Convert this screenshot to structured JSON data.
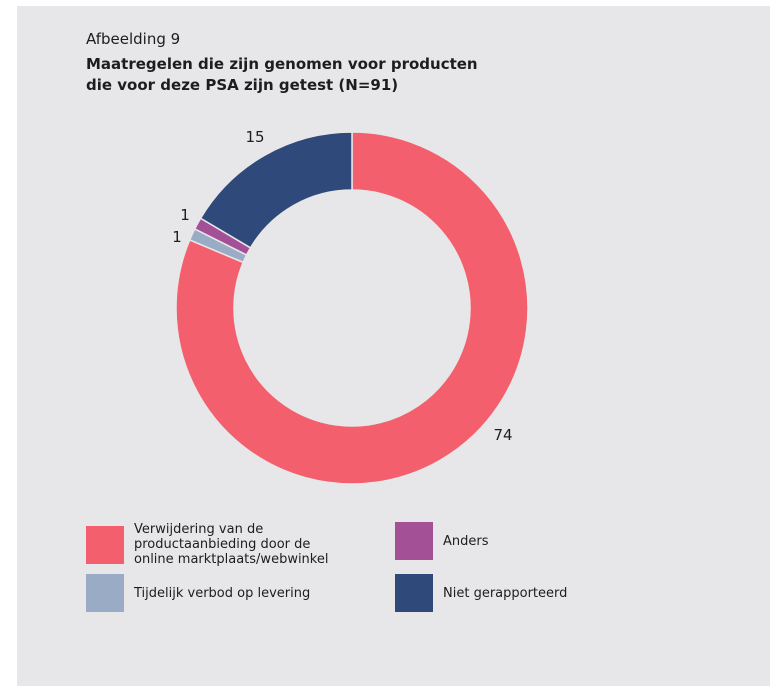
{
  "figure": {
    "kicker": "Afbeelding 9",
    "title_line1": "Maatregelen die zijn genomen voor producten",
    "title_line2": "die voor deze PSA zijn getest (N=91)"
  },
  "chart_data": {
    "type": "pie",
    "variant": "donut",
    "title": "Maatregelen die zijn genomen voor producten die voor deze PSA zijn getest (N=91)",
    "total": 91,
    "slices": [
      {
        "label": "Verwijdering van de productaanbieding door de online marktplaats/webwinkel",
        "value": 74,
        "display": "74",
        "color": "#f35f6c"
      },
      {
        "label": "Tijdelijk verbod op levering",
        "value": 1,
        "display": "1",
        "color": "#9aabc5"
      },
      {
        "label": "Anders",
        "value": 1,
        "display": "1",
        "color": "#a45096"
      },
      {
        "label": "Niet gerapporteerd",
        "value": 15,
        "display": "15",
        "color": "#2f4a7a"
      }
    ],
    "legend_position": "bottom"
  },
  "legend": {
    "items": [
      {
        "line1": "Verwijdering van de",
        "line2": "productaanbieding door de",
        "line3": "online marktplaats/webwinkel",
        "color": "#f35f6c"
      },
      {
        "line1": "Anders",
        "color": "#a45096"
      },
      {
        "line1": "Tijdelijk verbod op levering",
        "color": "#9aabc5"
      },
      {
        "line1": "Niet gerapporteerd",
        "color": "#2f4a7a"
      }
    ]
  }
}
